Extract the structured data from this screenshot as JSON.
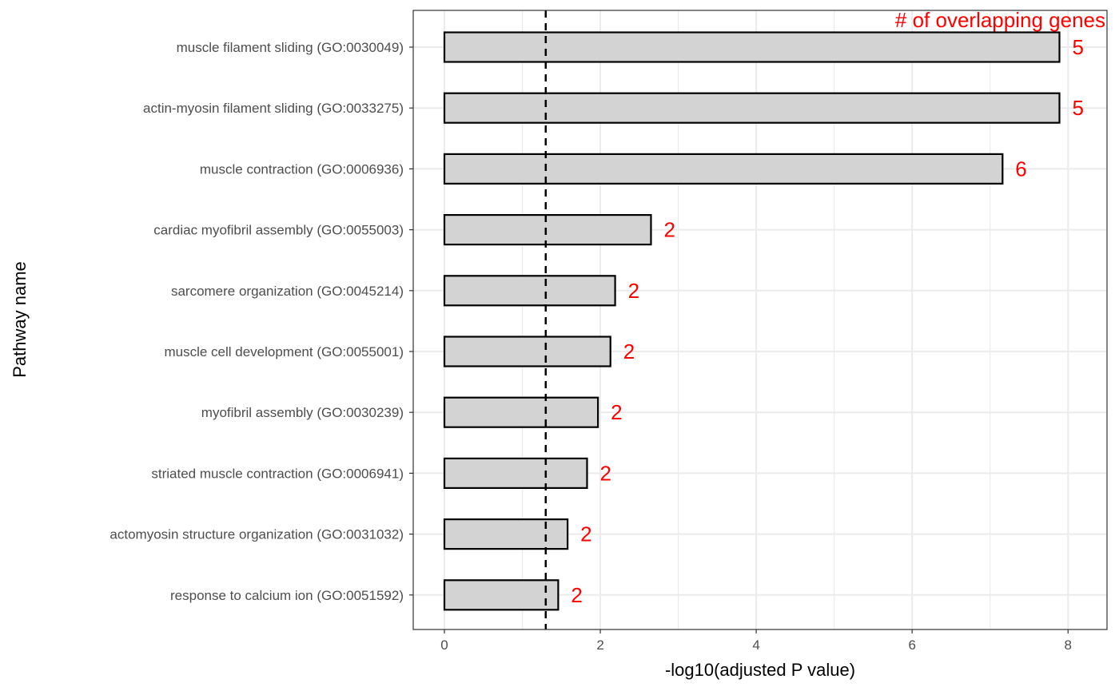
{
  "chart_data": {
    "type": "bar",
    "orientation": "horizontal",
    "xlabel": "-log10(adjusted P value)",
    "ylabel": "Pathway name",
    "annotation": "# of overlapping genes",
    "xlim": [
      -0.4,
      8.5
    ],
    "x_ticks": [
      0,
      2,
      4,
      6,
      8
    ],
    "grid": true,
    "threshold_line": 1.3,
    "categories": [
      "muscle filament sliding (GO:0030049)",
      "actin-myosin filament sliding (GO:0033275)",
      "muscle contraction (GO:0006936)",
      "cardiac myofibril assembly (GO:0055003)",
      "sarcomere organization (GO:0045214)",
      "muscle cell development (GO:0055001)",
      "myofibril assembly (GO:0030239)",
      "striated muscle contraction (GO:0006941)",
      "actomyosin structure organization (GO:0031032)",
      "response to calcium ion (GO:0051592)"
    ],
    "values": [
      7.89,
      7.89,
      7.16,
      2.65,
      2.19,
      2.13,
      1.97,
      1.83,
      1.58,
      1.46
    ],
    "counts": [
      5,
      5,
      6,
      2,
      2,
      2,
      2,
      2,
      2,
      2
    ],
    "colors": {
      "bar_fill": "#d3d3d3",
      "bar_stroke": "#000000",
      "count_text": "#ff0000",
      "grid": "#ebebeb"
    }
  }
}
